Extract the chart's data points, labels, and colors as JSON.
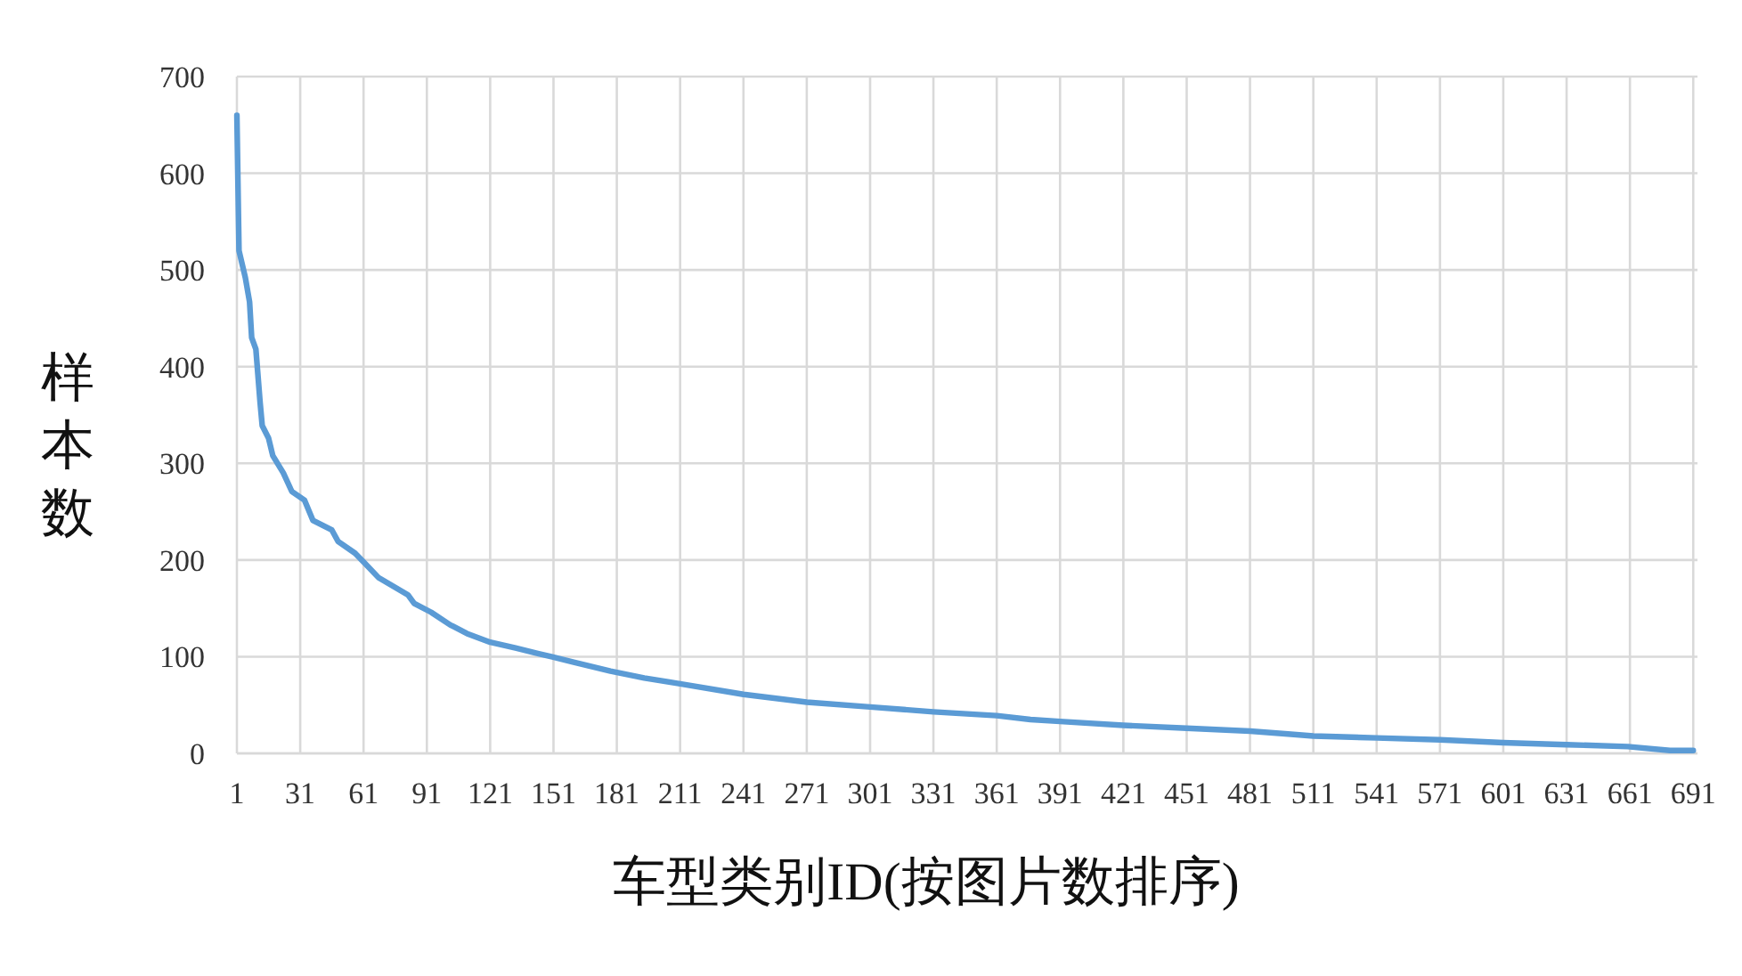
{
  "chart_data": {
    "type": "line",
    "xlabel": "车型类别ID(按图片数排序)",
    "ylabel": "样本数",
    "x": [
      1,
      2,
      5,
      7,
      8,
      10,
      12,
      13,
      16,
      18,
      23,
      27,
      33,
      37,
      46,
      49,
      57,
      61,
      68,
      75,
      82,
      85,
      93,
      102,
      110,
      121,
      133,
      144,
      150,
      161,
      178,
      194,
      211,
      241,
      271,
      301,
      331,
      361,
      377,
      391,
      421,
      451,
      481,
      499,
      511,
      541,
      571,
      601,
      631,
      660,
      680,
      691
    ],
    "values": [
      660,
      520,
      492,
      467,
      430,
      418,
      363,
      339,
      326,
      308,
      290,
      271,
      262,
      241,
      231,
      219,
      207,
      198,
      182,
      173,
      164,
      155,
      146,
      133,
      124,
      115,
      109,
      103,
      100,
      94,
      85,
      78,
      72,
      61,
      53,
      48,
      43,
      39,
      35,
      33,
      29,
      26,
      23,
      20,
      18,
      16,
      14,
      11,
      9,
      7,
      3,
      3
    ],
    "color": "#5b9bd5",
    "xlim": [
      1,
      693
    ],
    "xticks": [
      1,
      31,
      61,
      91,
      121,
      151,
      181,
      211,
      241,
      271,
      301,
      331,
      361,
      391,
      421,
      451,
      481,
      511,
      541,
      571,
      601,
      631,
      661,
      691
    ],
    "ylim": [
      0,
      700
    ],
    "yticks": [
      0,
      100,
      200,
      300,
      400,
      500,
      600,
      700
    ],
    "grid": true
  }
}
